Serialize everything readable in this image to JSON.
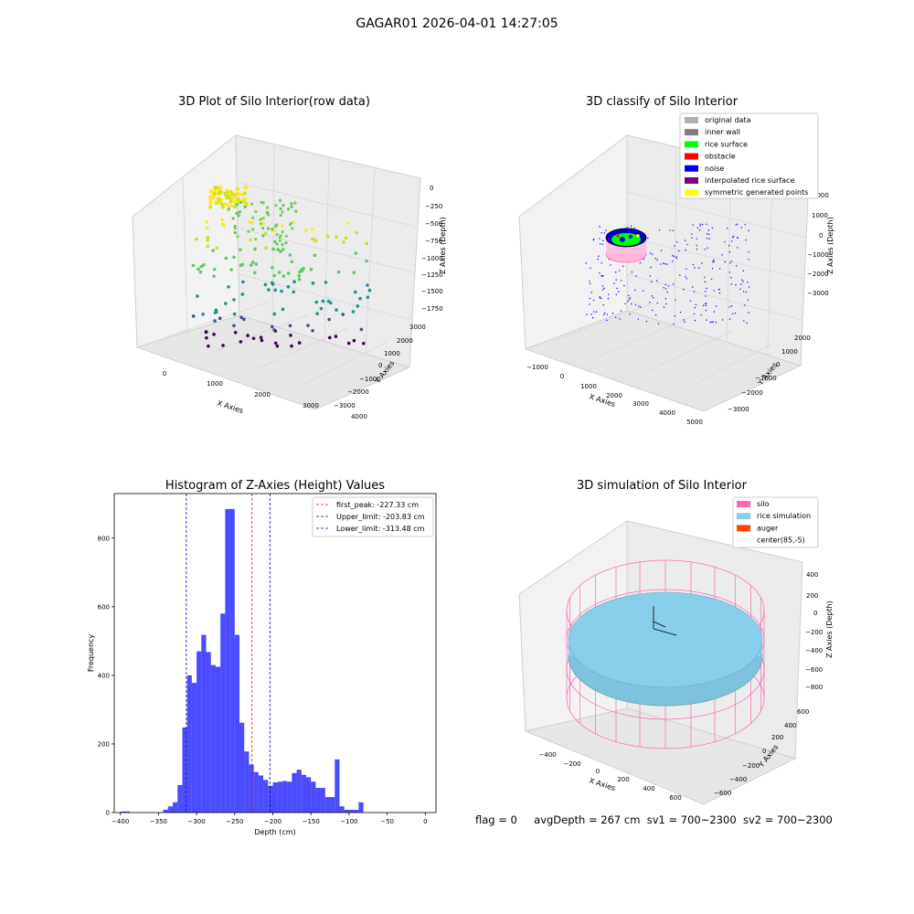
{
  "suptitle": "GAGAR01 2026-04-01 14:27:05",
  "panels": {
    "p1": {
      "title": "3D Plot of Silo Interior(row data)",
      "xlabel": "X Axies",
      "ylabel": "Y Axies",
      "zlabel": "Z Axies (Depth)",
      "xticks": [
        "0",
        "1000",
        "2000",
        "3000",
        "4000"
      ],
      "yticks": [
        "3000",
        "2000",
        "1000",
        "0",
        "−1000",
        "−2000",
        "−3000"
      ],
      "zticks": [
        "0",
        "−250",
        "−500",
        "−750",
        "−1000",
        "−1250",
        "−1500",
        "−1750"
      ]
    },
    "p2": {
      "title": "3D classify of Silo Interior",
      "xlabel": "X Axies",
      "ylabel": "Y Axies",
      "zlabel": "Z Axies (Depth)",
      "xticks": [
        "−1000",
        "0",
        "1000",
        "2000",
        "3000",
        "4000",
        "5000"
      ],
      "yticks": [
        "2000",
        "1000",
        "0",
        "−1000",
        "−2000",
        "−3000"
      ],
      "zticks": [
        "2000",
        "1000",
        "0",
        "−1000",
        "−2000",
        "−3000"
      ],
      "legend": [
        {
          "label": "original data",
          "color": "#b0b0b0"
        },
        {
          "label": "inner wall",
          "color": "#808080"
        },
        {
          "label": "rice surface",
          "color": "#00ff00"
        },
        {
          "label": "obstacle",
          "color": "#ff0000"
        },
        {
          "label": "noise",
          "color": "#0000ff"
        },
        {
          "label": "interpolated rice surface",
          "color": "#800080"
        },
        {
          "label": "symmetric generated points",
          "color": "#ffff00"
        }
      ]
    },
    "p4": {
      "title": "3D simulation of Silo Interior",
      "xlabel": "X Axies",
      "ylabel": "Y Axies",
      "zlabel": "Z Axies (Depth)",
      "xticks": [
        "−400",
        "−200",
        "0",
        "200",
        "400",
        "600"
      ],
      "yticks": [
        "600",
        "400",
        "200",
        "0",
        "−200",
        "−400",
        "−600"
      ],
      "zticks": [
        "400",
        "200",
        "0",
        "−200",
        "−400",
        "−600",
        "−800"
      ],
      "legend": [
        {
          "label": "silo",
          "color": "#ff69b4"
        },
        {
          "label": "rice simulation",
          "color": "#87ceeb"
        },
        {
          "label": "auger",
          "color": "#ff4500"
        },
        {
          "label": "center(85,-5)",
          "color": "#ffffff"
        }
      ]
    }
  },
  "chart_data": [
    {
      "type": "bar",
      "title": "Histogram of Z-Axies (Height) Values",
      "xlabel": "Depth (cm)",
      "ylabel": "Frequency",
      "xlim": [
        -408,
        14
      ],
      "ylim": [
        0,
        930
      ],
      "xticks": [
        "−400",
        "−350",
        "−300",
        "−250",
        "−200",
        "−150",
        "−100",
        "−50",
        "0"
      ],
      "yticks": [
        "0",
        "200",
        "400",
        "600",
        "800"
      ],
      "bar_color": "#0000ff",
      "bin_edges_start": -400,
      "bin_width": 6.25,
      "values": [
        3,
        3,
        0,
        0,
        0,
        0,
        0,
        0,
        0,
        8,
        18,
        30,
        80,
        248,
        400,
        378,
        470,
        518,
        468,
        430,
        425,
        580,
        885,
        885,
        518,
        262,
        178,
        140,
        118,
        108,
        95,
        78,
        88,
        90,
        92,
        90,
        115,
        125,
        110,
        103,
        90,
        72,
        72,
        45,
        45,
        155,
        18,
        8,
        8,
        8,
        30
      ],
      "vlines": [
        {
          "label": "first_peak: -227.33 cm",
          "x": -227.33,
          "color": "#ff0000"
        },
        {
          "label": "Upper_limit: -203.83 cm",
          "x": -203.83,
          "color": "#0000aa"
        },
        {
          "label": "Lower_limit: -313.48 cm",
          "x": -313.48,
          "color": "#0000aa"
        }
      ]
    }
  ],
  "footer": {
    "flag": "flag = 0",
    "avg": "avgDepth = 267 cm",
    "sv1": "sv1 = 700~2300",
    "sv2": "sv2 = 700~2300"
  }
}
